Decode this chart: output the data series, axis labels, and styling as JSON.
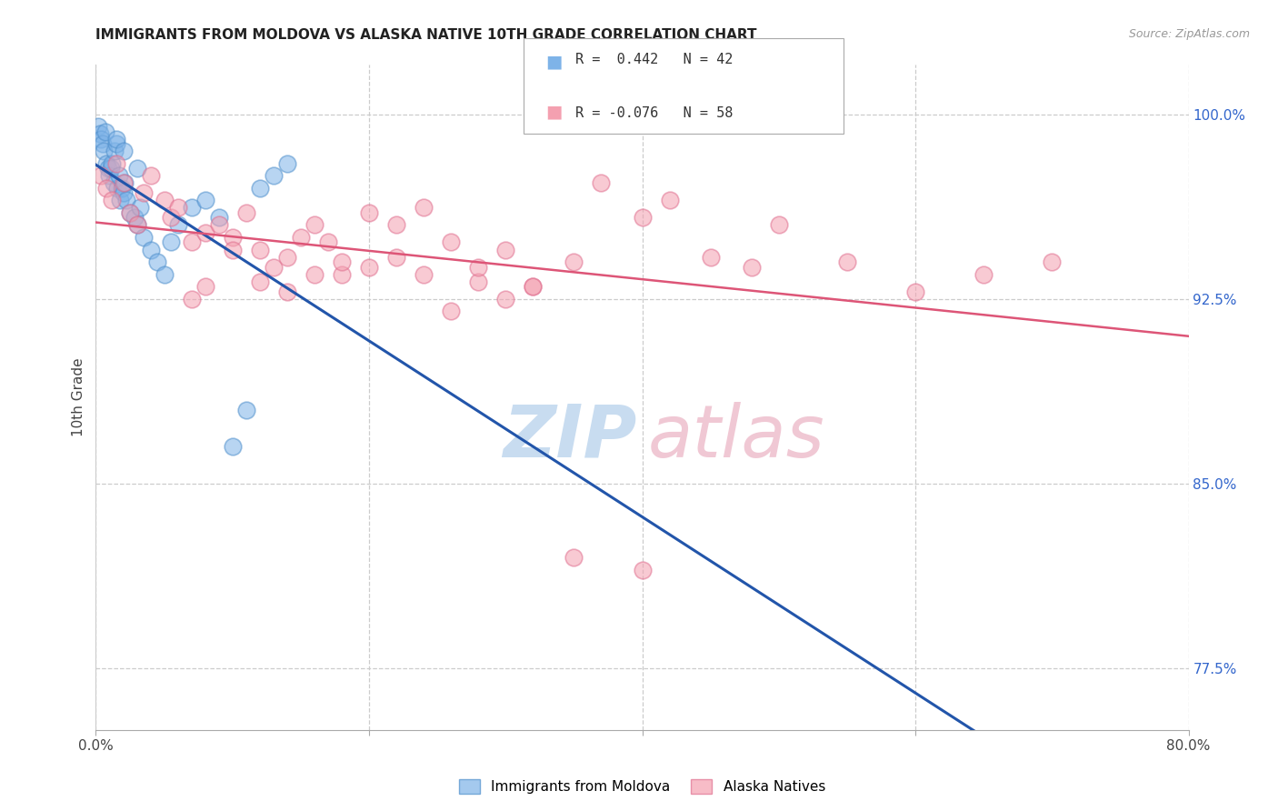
{
  "title": "IMMIGRANTS FROM MOLDOVA VS ALASKA NATIVE 10TH GRADE CORRELATION CHART",
  "source": "Source: ZipAtlas.com",
  "ylabel": "10th Grade",
  "xlim": [
    0.0,
    80.0
  ],
  "ylim": [
    75.0,
    102.0
  ],
  "right_yticks": [
    77.5,
    85.0,
    92.5,
    100.0
  ],
  "right_ytick_labels": [
    "77.5%",
    "85.0%",
    "92.5%",
    "100.0%"
  ],
  "blue_R": 0.442,
  "blue_N": 42,
  "pink_R": -0.076,
  "pink_N": 58,
  "blue_color": "#7EB3E8",
  "pink_color": "#F4A0B0",
  "blue_edge_color": "#5090CC",
  "pink_edge_color": "#E07090",
  "blue_line_color": "#2255AA",
  "pink_line_color": "#DD5577",
  "watermark_zip_color": "#C8DCF0",
  "watermark_atlas_color": "#F0C8D4",
  "blue_points_x": [
    0.2,
    0.3,
    0.4,
    0.5,
    0.6,
    0.7,
    0.8,
    0.9,
    1.0,
    1.1,
    1.2,
    1.3,
    1.4,
    1.5,
    1.6,
    1.7,
    1.8,
    1.9,
    2.0,
    2.1,
    2.2,
    2.5,
    2.8,
    3.0,
    3.2,
    3.5,
    4.0,
    4.5,
    5.0,
    5.5,
    6.0,
    7.0,
    8.0,
    9.0,
    10.0,
    11.0,
    12.0,
    13.0,
    14.0,
    1.5,
    2.0,
    3.0
  ],
  "blue_points_y": [
    99.5,
    99.2,
    99.0,
    98.8,
    98.5,
    99.3,
    98.0,
    97.8,
    97.5,
    97.8,
    98.0,
    97.2,
    98.5,
    98.8,
    97.0,
    97.5,
    96.5,
    97.0,
    96.8,
    97.2,
    96.5,
    96.0,
    95.8,
    95.5,
    96.2,
    95.0,
    94.5,
    94.0,
    93.5,
    94.8,
    95.5,
    96.2,
    96.5,
    95.8,
    86.5,
    88.0,
    97.0,
    97.5,
    98.0,
    99.0,
    98.5,
    97.8
  ],
  "pink_points_x": [
    0.4,
    0.8,
    1.2,
    1.5,
    2.0,
    2.5,
    3.0,
    3.5,
    4.0,
    5.0,
    5.5,
    6.0,
    7.0,
    8.0,
    9.0,
    10.0,
    11.0,
    12.0,
    13.0,
    14.0,
    15.0,
    16.0,
    17.0,
    18.0,
    20.0,
    22.0,
    24.0,
    26.0,
    28.0,
    30.0,
    32.0,
    35.0,
    37.0,
    40.0,
    42.0,
    45.0,
    48.0,
    50.0,
    55.0,
    60.0,
    65.0,
    70.0,
    7.0,
    8.0,
    10.0,
    12.0,
    14.0,
    16.0,
    18.0,
    20.0,
    22.0,
    24.0,
    26.0,
    28.0,
    30.0,
    32.0,
    35.0,
    40.0
  ],
  "pink_points_y": [
    97.5,
    97.0,
    96.5,
    98.0,
    97.2,
    96.0,
    95.5,
    96.8,
    97.5,
    96.5,
    95.8,
    96.2,
    94.8,
    95.2,
    95.5,
    95.0,
    96.0,
    94.5,
    93.8,
    94.2,
    95.0,
    95.5,
    94.8,
    93.5,
    96.0,
    95.5,
    96.2,
    94.8,
    93.2,
    94.5,
    93.0,
    94.0,
    97.2,
    95.8,
    96.5,
    94.2,
    93.8,
    95.5,
    94.0,
    92.8,
    93.5,
    94.0,
    92.5,
    93.0,
    94.5,
    93.2,
    92.8,
    93.5,
    94.0,
    93.8,
    94.2,
    93.5,
    92.0,
    93.8,
    92.5,
    93.0,
    82.0,
    81.5
  ]
}
